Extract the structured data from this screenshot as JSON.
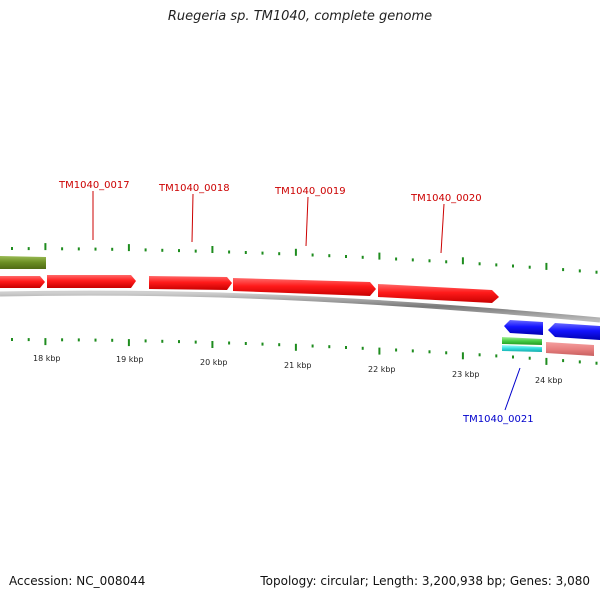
{
  "title": "Ruegeria sp. TM1040, complete genome",
  "footer": {
    "accession": "Accession: NC_008044",
    "summary": "Topology: circular; Length: 3,200,938 bp; Genes: 3,080"
  },
  "colors": {
    "forward_gene": "#ff1a1a",
    "reverse_gene": "#1414ff",
    "green_feature": "#6b8e23",
    "tick": "#1e8c1e",
    "backbone": "#8a8a8a",
    "label_red": "#cc0000",
    "label_blue": "#0000cc"
  },
  "ruler": {
    "labels": [
      "18 kbp",
      "19 kbp",
      "20 kbp",
      "21 kbp",
      "22 kbp",
      "23 kbp",
      "24 kbp"
    ]
  },
  "gene_labels": [
    {
      "text": "TM1040_0017",
      "strand": "forward"
    },
    {
      "text": "TM1040_0018",
      "strand": "forward"
    },
    {
      "text": "TM1040_0019",
      "strand": "forward"
    },
    {
      "text": "TM1040_0020",
      "strand": "forward"
    },
    {
      "text": "TM1040_0021",
      "strand": "reverse"
    }
  ]
}
